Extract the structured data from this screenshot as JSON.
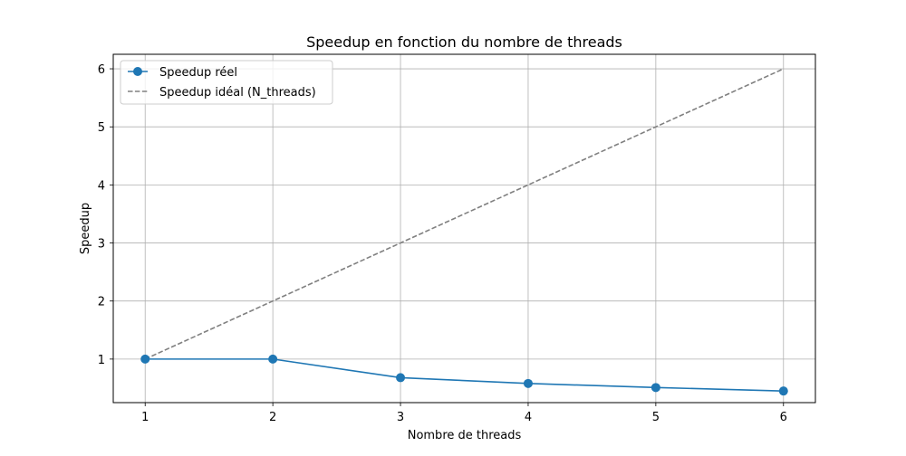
{
  "chart_data": {
    "type": "line",
    "title": "Speedup en fonction du nombre de threads",
    "xlabel": "Nombre de threads",
    "ylabel": "Speedup",
    "x": [
      1,
      2,
      3,
      4,
      5,
      6
    ],
    "xlim": [
      0.75,
      6.25
    ],
    "ylim": [
      0.25,
      6.25
    ],
    "xticks": [
      1,
      2,
      3,
      4,
      5,
      6
    ],
    "yticks": [
      1,
      2,
      3,
      4,
      5,
      6
    ],
    "grid": true,
    "legend_position": "top-left",
    "series": [
      {
        "name": "Speedup réel",
        "values": [
          1.0,
          1.0,
          0.68,
          0.58,
          0.51,
          0.45
        ],
        "color": "#1f77b4",
        "style": "solid",
        "marker": "circle"
      },
      {
        "name": "Speedup idéal (N_threads)",
        "values": [
          1,
          2,
          3,
          4,
          5,
          6
        ],
        "color": "#808080",
        "style": "dashed",
        "marker": "none"
      }
    ]
  }
}
